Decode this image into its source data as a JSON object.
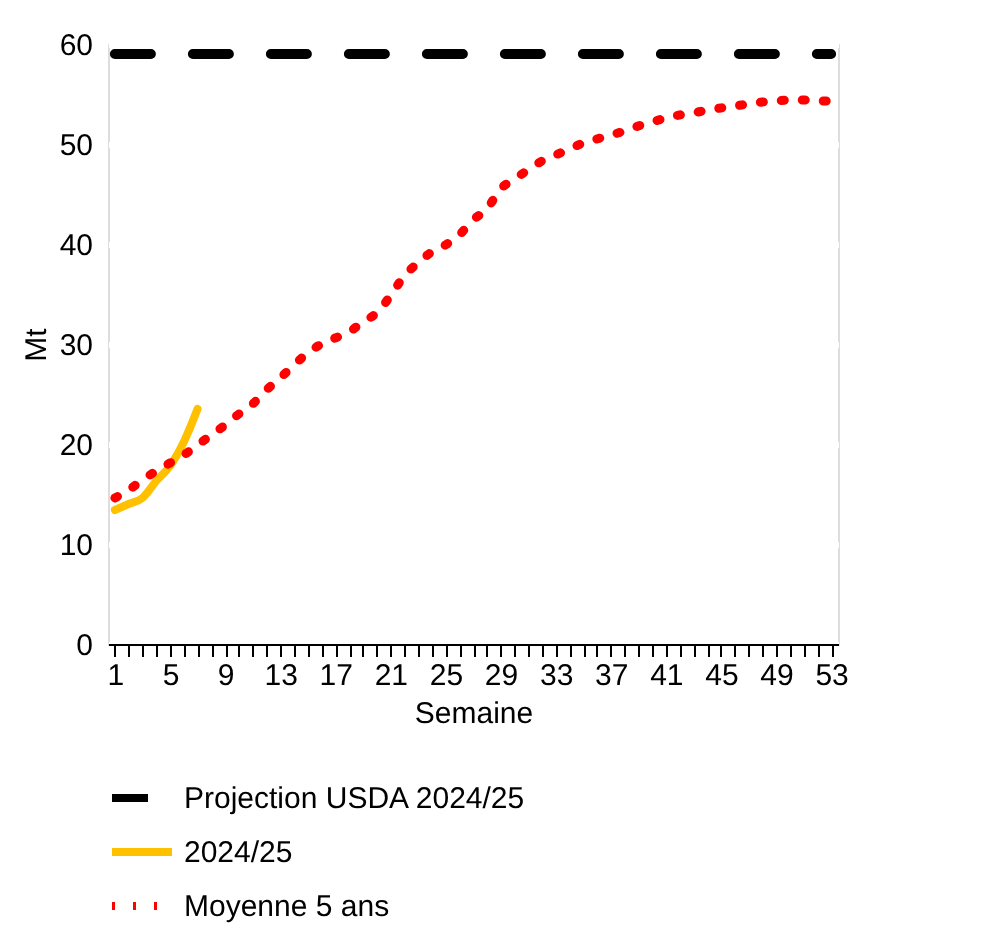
{
  "chart_data": {
    "type": "line",
    "xlabel": "Semaine",
    "ylabel": "Mt",
    "xlim": [
      0.5,
      53.5
    ],
    "xticks": [
      1,
      {
        "value": 2,
        "label": null
      },
      {
        "value": 3,
        "label": null
      },
      {
        "value": 4,
        "label": null
      },
      5,
      {
        "value": 6,
        "label": null
      },
      {
        "value": 7,
        "label": null
      },
      {
        "value": 8,
        "label": null
      },
      9,
      {
        "value": 10,
        "label": null
      },
      {
        "value": 11,
        "label": null
      },
      {
        "value": 12,
        "label": null
      },
      13,
      {
        "value": 14,
        "label": null
      },
      {
        "value": 15,
        "label": null
      },
      {
        "value": 16,
        "label": null
      },
      17,
      {
        "value": 18,
        "label": null
      },
      {
        "value": 19,
        "label": null
      },
      {
        "value": 20,
        "label": null
      },
      21,
      {
        "value": 22,
        "label": null
      },
      {
        "value": 23,
        "label": null
      },
      {
        "value": 24,
        "label": null
      },
      25,
      {
        "value": 26,
        "label": null
      },
      {
        "value": 27,
        "label": null
      },
      {
        "value": 28,
        "label": null
      },
      29,
      {
        "value": 30,
        "label": null
      },
      {
        "value": 31,
        "label": null
      },
      {
        "value": 32,
        "label": null
      },
      33,
      {
        "value": 34,
        "label": null
      },
      {
        "value": 35,
        "label": null
      },
      {
        "value": 36,
        "label": null
      },
      37,
      {
        "value": 38,
        "label": null
      },
      {
        "value": 39,
        "label": null
      },
      {
        "value": 40,
        "label": null
      },
      41,
      {
        "value": 42,
        "label": null
      },
      {
        "value": 43,
        "label": null
      },
      {
        "value": 44,
        "label": null
      },
      45,
      {
        "value": 46,
        "label": null
      },
      {
        "value": 47,
        "label": null
      },
      {
        "value": 48,
        "label": null
      },
      49,
      {
        "value": 50,
        "label": null
      },
      {
        "value": 51,
        "label": null
      },
      {
        "value": 52,
        "label": null
      },
      53
    ],
    "ylim": [
      0,
      60
    ],
    "yticks": [
      0,
      10,
      20,
      30,
      40,
      50,
      60
    ],
    "grid": "y",
    "legend": "bottom",
    "marker": "none",
    "series": [
      {
        "name": "Projection USDA 2024/25",
        "color": "#000000",
        "line_style": "dashed",
        "x": [
          1,
          53
        ],
        "values": [
          59,
          59
        ]
      },
      {
        "name": "2024/25",
        "color": "#ffc000",
        "line_style": "solid",
        "x": [
          1,
          2,
          3,
          4,
          5,
          6,
          7
        ],
        "values": [
          13.4,
          14.0,
          14.6,
          16.3,
          17.8,
          20.2,
          23.5
        ]
      },
      {
        "name": "Moyenne 5 ans",
        "color": "#ff0000",
        "line_style": "dotted",
        "x": [
          1,
          2,
          3,
          4,
          5,
          6,
          7,
          8,
          9,
          10,
          11,
          12,
          13,
          14,
          15,
          16,
          17,
          18,
          19,
          20,
          21,
          22,
          23,
          24,
          25,
          26,
          27,
          28,
          29,
          30,
          31,
          32,
          33,
          34,
          35,
          36,
          37,
          38,
          39,
          40,
          41,
          42,
          43,
          44,
          45,
          46,
          47,
          48,
          49,
          50,
          51,
          52,
          53
        ],
        "values": [
          14.6,
          15.4,
          16.4,
          17.3,
          18.1,
          18.9,
          19.9,
          20.9,
          21.9,
          23.0,
          24.0,
          25.4,
          26.6,
          27.9,
          29.1,
          30.0,
          30.6,
          31.2,
          32.2,
          33.1,
          34.8,
          36.8,
          38.1,
          39.2,
          39.9,
          40.9,
          42.4,
          43.5,
          45.5,
          46.5,
          47.4,
          48.3,
          48.9,
          49.5,
          50.1,
          50.5,
          50.9,
          51.3,
          51.8,
          52.2,
          52.6,
          52.9,
          53.1,
          53.4,
          53.6,
          53.8,
          54.0,
          54.2,
          54.3,
          54.4,
          54.4,
          54.3,
          54.3
        ]
      }
    ]
  }
}
